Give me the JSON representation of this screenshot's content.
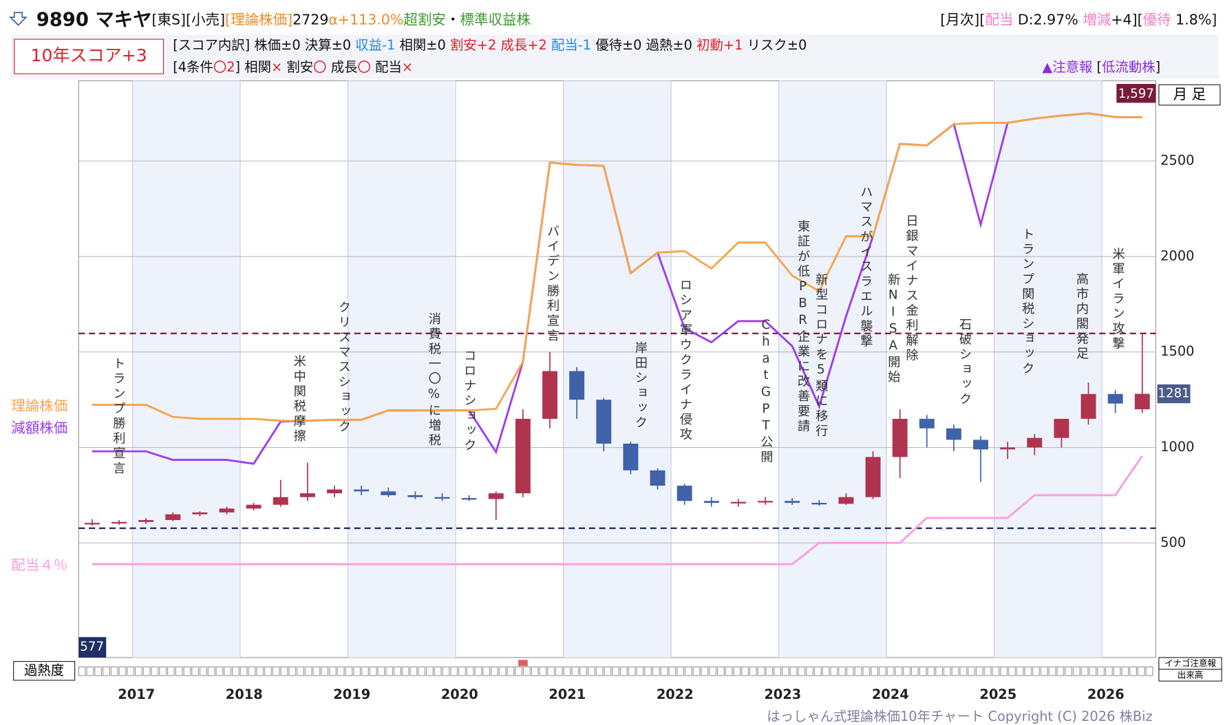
{
  "header": {
    "line1": [
      {
        "text": "9890 マキヤ",
        "color": "#111111"
      },
      {
        "text": "[東S][小売]",
        "color": "#111111"
      },
      {
        "text": "[理論株価]",
        "color": "#f08a24"
      },
      {
        "text": "2729",
        "color": "#111111"
      },
      {
        "text": "α+113.0%",
        "color": "#f08a24"
      },
      {
        "text": "超割安",
        "color": "#3a9a2a"
      },
      {
        "text": "・",
        "color": "#111111"
      },
      {
        "text": "標準収益株",
        "color": "#3a9a2a"
      }
    ],
    "right": [
      {
        "text": "[月次][",
        "color": "#111111"
      },
      {
        "text": "配当",
        "color": "#f27fc8"
      },
      {
        "text": " D:2.97% ",
        "color": "#111111"
      },
      {
        "text": "増減",
        "color": "#f27fc8"
      },
      {
        "text": "+4][",
        "color": "#111111"
      },
      {
        "text": "優待",
        "color": "#f27fc8"
      },
      {
        "text": " 1.8%]",
        "color": "#111111"
      }
    ],
    "score": "10年スコア+3",
    "line2": [
      {
        "text": "[スコア内訳] 株価±0 決算±0 ",
        "color": "#111111"
      },
      {
        "text": "収益-1",
        "color": "#1e88e5"
      },
      {
        "text": " 相関±0 ",
        "color": "#111111"
      },
      {
        "text": "割安+2 成長+2",
        "color": "#e0202a"
      },
      {
        "text": " 配当-1",
        "color": "#1e88e5"
      },
      {
        "text": " 優待±0 過熱±0 ",
        "color": "#111111"
      },
      {
        "text": "初動+1",
        "color": "#e0202a"
      },
      {
        "text": " リスク±0",
        "color": "#111111"
      }
    ],
    "line3": [
      {
        "text": "[4条件",
        "color": "#111111"
      },
      {
        "text": "〇2",
        "color": "#e0202a"
      },
      {
        "text": "] 相関",
        "color": "#111111"
      },
      {
        "text": "×",
        "color": "#e0202a"
      },
      {
        "text": " 割安",
        "color": "#111111"
      },
      {
        "text": "〇",
        "color": "#e0202a"
      },
      {
        "text": " 成長",
        "color": "#111111"
      },
      {
        "text": "〇",
        "color": "#e0202a"
      },
      {
        "text": " 配当",
        "color": "#111111"
      },
      {
        "text": "×",
        "color": "#e0202a"
      }
    ],
    "alert": [
      {
        "text": "▲注意報",
        "color": "#8a2be2"
      },
      {
        "text": " [",
        "color": "#111111"
      },
      {
        "text": "低流動株",
        "color": "#8a2be2"
      },
      {
        "text": "]",
        "color": "#111111"
      }
    ]
  },
  "chart_data": {
    "type": "candlestick",
    "period_label": "月 足",
    "years": [
      "2017",
      "2018",
      "2019",
      "2020",
      "2021",
      "2022",
      "2023",
      "2024",
      "2025",
      "2026"
    ],
    "ylim": [
      -100,
      2920
    ],
    "yticks": [
      500,
      1000,
      1500,
      2000,
      2500
    ],
    "grid": true,
    "up_color": "#b0344e",
    "down_color": "#3f62a8",
    "candles": {
      "open": [
        600,
        605,
        610,
        620,
        650,
        660,
        680,
        700,
        740,
        760,
        780,
        770,
        750,
        740,
        735,
        730,
        760,
        1150,
        1400,
        1250,
        1020,
        880,
        800,
        720,
        710,
        715,
        720,
        710,
        705,
        740,
        950,
        1150,
        1100,
        1040,
        990,
        1000,
        1050,
        1150,
        1280,
        1200
      ],
      "high": [
        625,
        620,
        630,
        660,
        665,
        690,
        710,
        830,
        920,
        800,
        800,
        790,
        770,
        760,
        750,
        770,
        1200,
        1500,
        1420,
        1260,
        1030,
        890,
        810,
        740,
        730,
        740,
        735,
        725,
        760,
        980,
        1200,
        1170,
        1120,
        1060,
        1030,
        1070,
        1120,
        1340,
        1300,
        1597
      ],
      "low": [
        590,
        595,
        600,
        615,
        640,
        650,
        670,
        690,
        720,
        740,
        750,
        740,
        730,
        720,
        720,
        620,
        740,
        1100,
        1150,
        980,
        860,
        780,
        700,
        690,
        690,
        700,
        700,
        695,
        700,
        730,
        840,
        1000,
        980,
        820,
        940,
        960,
        1000,
        1120,
        1180,
        1180
      ],
      "close": [
        605,
        610,
        620,
        650,
        660,
        680,
        700,
        740,
        760,
        780,
        770,
        750,
        740,
        735,
        730,
        760,
        1150,
        1400,
        1250,
        1020,
        880,
        800,
        720,
        710,
        715,
        720,
        710,
        705,
        740,
        950,
        1150,
        1100,
        1040,
        990,
        1000,
        1050,
        1150,
        1280,
        1230,
        1281
      ]
    },
    "lines": [
      {
        "name": "減額株価",
        "color": "#9b3cf0",
        "values": [
          980,
          980,
          980,
          935,
          935,
          935,
          915,
          1136,
          1140,
          1145,
          1145,
          1194,
          1194,
          1194,
          1194,
          976,
          1449,
          2492,
          2480,
          2475,
          1913,
          2020,
          1625,
          1551,
          1662,
          1662,
          1531,
          1215,
          1687,
          2106,
          2590,
          2582,
          2693,
          2167,
          2700,
          2722,
          2738,
          2750,
          2730,
          2729
        ]
      },
      {
        "name": "理論株価",
        "color": "#f7a44a",
        "values": [
          1223,
          1223,
          1223,
          1160,
          1150,
          1150,
          1150,
          1140,
          1140,
          1145,
          1145,
          1194,
          1194,
          1194,
          1194,
          1202,
          1449,
          2492,
          2480,
          2475,
          1913,
          2020,
          2028,
          1937,
          2073,
          2073,
          1900,
          1818,
          2106,
          2106,
          2590,
          2582,
          2693,
          2700,
          2700,
          2722,
          2738,
          2750,
          2730,
          2729
        ]
      },
      {
        "name": "配当４％",
        "color": "#ff9ae0",
        "values": [
          389,
          389,
          389,
          389,
          389,
          389,
          389,
          389,
          389,
          389,
          389,
          389,
          389,
          389,
          389,
          389,
          389,
          389,
          389,
          389,
          389,
          389,
          389,
          389,
          389,
          389,
          389,
          500,
          500,
          500,
          500,
          631,
          631,
          631,
          631,
          750,
          750,
          750,
          750,
          956
        ]
      }
    ],
    "high_line": {
      "value": 1597,
      "label": "1,597"
    },
    "low_line": 577,
    "current_price": 1281,
    "annotations": [
      "トランプ勝利宣言",
      "米中関税摩擦",
      "クリスマスショック",
      "消費税一〇%に増税",
      "コロナショック",
      "バイデン勝利宣言",
      "岸田ショック",
      "ロシア軍ウクライナ侵攻",
      "ChatGPT公開",
      "東証が低PBR企業に改善要請",
      "新型コロナを5類に移行",
      "ハマスがイスラエル襲撃",
      "新NISA開始",
      "日銀マイナス金利解除",
      "石破ショック",
      "トランプ関税ショック",
      "高市内閣発足",
      "米軍イラン攻撃"
    ],
    "overheat_label": "過熱度",
    "alert_label": "イナゴ注意報",
    "volume_label": "出来高",
    "copyright": "はっしゃん式理論株価10年チャート Copyright (C) 2026 株Biz"
  }
}
